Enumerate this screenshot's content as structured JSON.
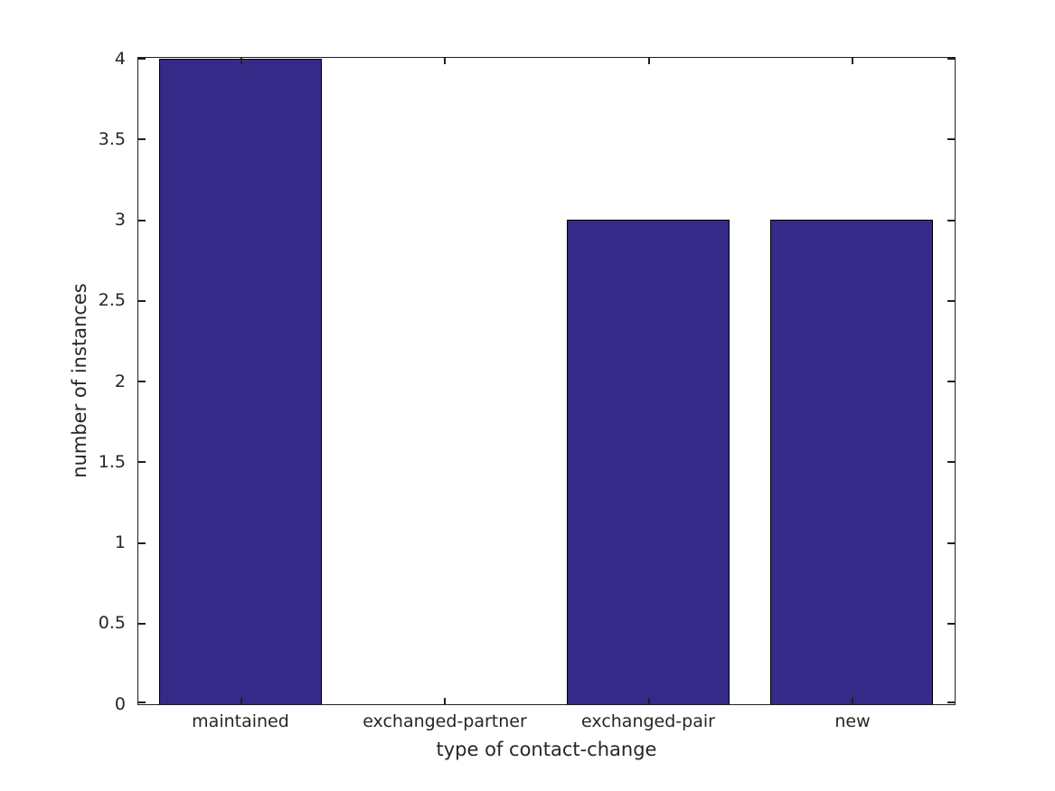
{
  "chart_data": {
    "type": "bar",
    "categories": [
      "maintained",
      "exchanged-partner",
      "exchanged-pair",
      "new"
    ],
    "values": [
      4,
      0,
      3,
      3
    ],
    "title": "",
    "xlabel": "type of contact-change",
    "ylabel": "number of instances",
    "ylim": [
      0,
      4
    ],
    "yticks": [
      0,
      0.5,
      1,
      1.5,
      2,
      2.5,
      3,
      3.5,
      4
    ],
    "ytick_labels": [
      "0",
      "0.5",
      "1",
      "1.5",
      "2",
      "2.5",
      "3",
      "3.5",
      "4"
    ],
    "bar_width_fraction": 0.8,
    "bar_color": "#352A87",
    "bar_edge_color": "#000000",
    "axis_color": "#262626",
    "background_color": "#FFFFFF",
    "grid": false,
    "legend": null
  }
}
